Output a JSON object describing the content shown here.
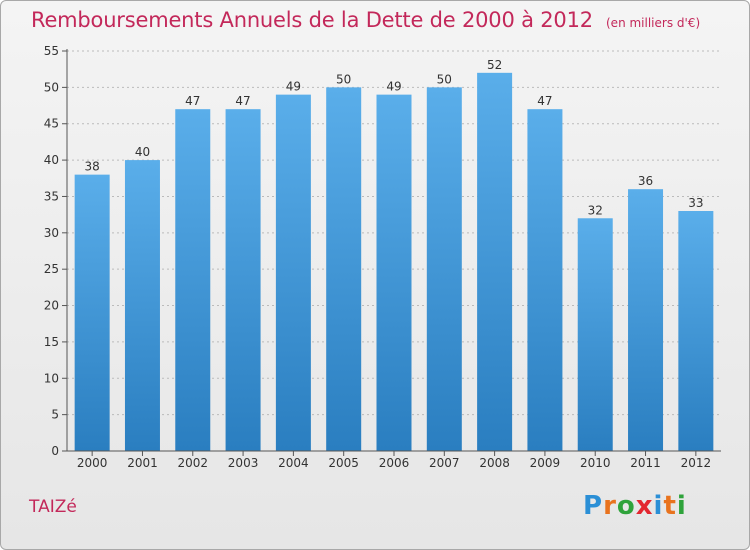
{
  "header": {
    "title": "Remboursements Annuels de la Dette de 2000 à 2012",
    "unit": "(en milliers d'€)"
  },
  "footer": {
    "commune": "TAIZé",
    "logo_letters": [
      "P",
      "r",
      "o",
      "x",
      "i",
      "t",
      "i"
    ],
    "logo_colors": [
      "#2b8fd6",
      "#e8731e",
      "#2fa33b",
      "#e3262f",
      "#2b8fd6",
      "#e8731e",
      "#2fa33b"
    ]
  },
  "colors": {
    "bar_top": "#5aaeea",
    "bar_bottom": "#2a7ec0",
    "axis": "#555555",
    "grid": "#bbbbbb",
    "label": "#333333"
  },
  "chart_data": {
    "type": "bar",
    "categories": [
      "2000",
      "2001",
      "2002",
      "2003",
      "2004",
      "2005",
      "2006",
      "2007",
      "2008",
      "2009",
      "2010",
      "2011",
      "2012"
    ],
    "values": [
      38,
      40,
      47,
      47,
      49,
      50,
      49,
      50,
      52,
      47,
      32,
      36,
      33
    ],
    "title": "Remboursements Annuels de la Dette de 2000 à 2012",
    "xlabel": "",
    "ylabel": "",
    "ylim": [
      0,
      55
    ],
    "yticks": [
      0,
      5,
      10,
      15,
      20,
      25,
      30,
      35,
      40,
      45,
      50,
      55
    ],
    "grid": true,
    "data_labels": true
  }
}
